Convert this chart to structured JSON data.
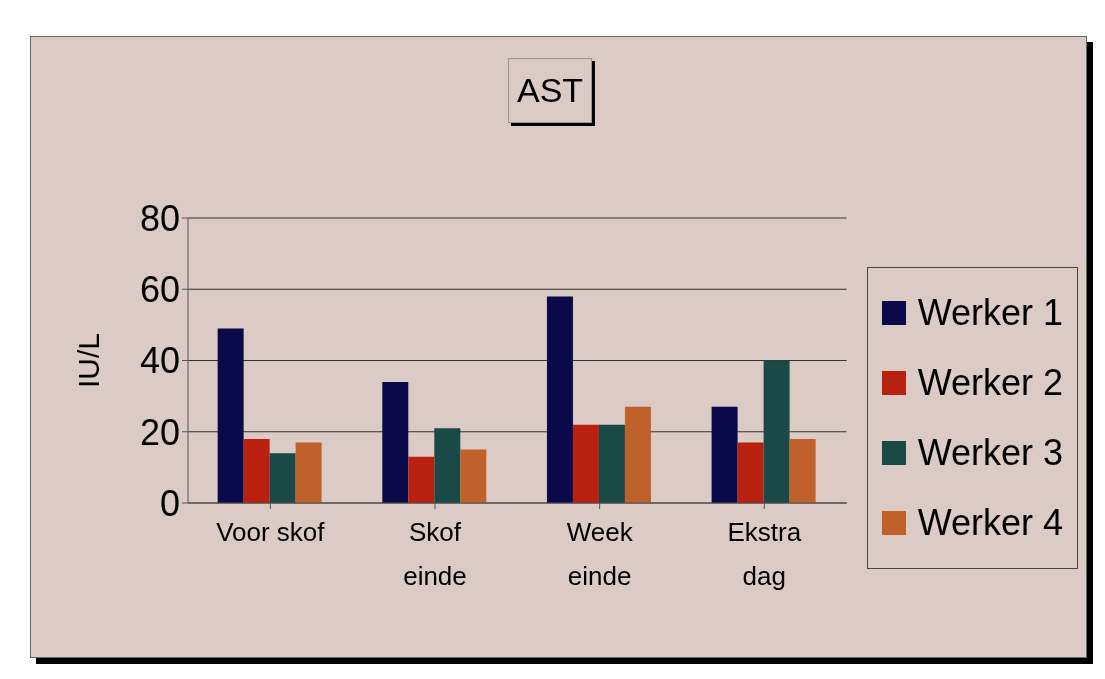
{
  "chart_data": {
    "type": "bar",
    "title": "AST",
    "ylabel": "IU/L",
    "categories": [
      "Voor skof",
      "Skof einde",
      "Week einde",
      "Ekstra dag"
    ],
    "series": [
      {
        "name": "Werker 1",
        "color": "#0a0a4a",
        "values": [
          49,
          34,
          58,
          27
        ]
      },
      {
        "name": "Werker 2",
        "color": "#b82010",
        "values": [
          18,
          13,
          22,
          17
        ]
      },
      {
        "name": "Werker 3",
        "color": "#1a4a48",
        "values": [
          14,
          21,
          22,
          40
        ]
      },
      {
        "name": "Werker 4",
        "color": "#c0602a",
        "values": [
          17,
          15,
          27,
          18
        ]
      }
    ],
    "ylim": [
      0,
      80
    ],
    "yticks": [
      0,
      20,
      40,
      60,
      80
    ],
    "grid": "y",
    "legend": "right"
  }
}
